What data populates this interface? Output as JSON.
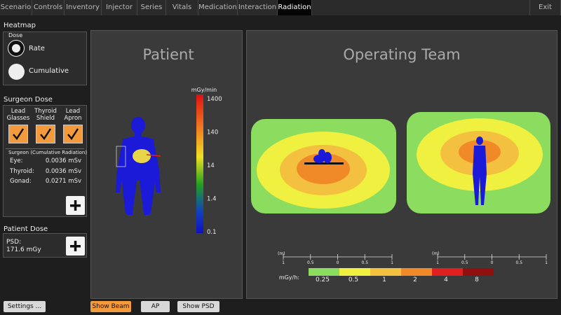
{
  "tabs": [
    "Scenario",
    "Controls",
    "Inventory",
    "Injector",
    "Series",
    "Vitals",
    "Medication",
    "Interaction",
    "Radiation"
  ],
  "active_tab": "Radiation",
  "exit": "Exit",
  "heatmap": {
    "title": "Heatmap",
    "group": "Dose",
    "options": [
      "Rate",
      "Cumulative"
    ]
  },
  "surgeon_dose": {
    "title": "Surgeon Dose",
    "protections": [
      "Lead Glasses",
      "Thyroid Shield",
      "Lead Apron"
    ],
    "subtitle": "Surgeon (Cumulative Radiation)",
    "rows": [
      [
        "Eye:",
        "0.0036 mSv"
      ],
      [
        "Thyroid:",
        "0.0036 mSv"
      ],
      [
        "Gonad:",
        "0.0271 mSv"
      ]
    ]
  },
  "patient_dose": {
    "title": "Patient Dose",
    "label": "PSD:",
    "value": "171.6 mGy"
  },
  "patient_panel": {
    "title": "Patient",
    "unit": "mGy/min",
    "scale": [
      "1400",
      "140",
      "14",
      "1.4",
      "0.1"
    ]
  },
  "team_panel": {
    "title": "Operating Team",
    "distance_scales": [
      {
        "unit": "(m)",
        "ticks": [
          "1",
          "0.5",
          "0",
          "0.5",
          "1"
        ]
      },
      {
        "unit": "(m)",
        "ticks": [
          "1",
          "0.5",
          "0",
          "0.5",
          "1"
        ]
      }
    ],
    "legend_unit": "mGy/h:",
    "legend": [
      "0.25",
      "0.5",
      "1",
      "2",
      "4",
      "8"
    ]
  },
  "buttons": [
    "Settings ...",
    "Show Beam",
    "AP",
    "Show PSD"
  ]
}
